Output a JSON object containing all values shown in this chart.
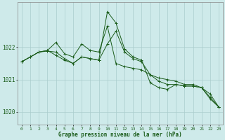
{
  "title": "Graphe pression niveau de la mer (hPa)",
  "bg_color": "#ceeaea",
  "grid_color": "#aacccc",
  "line_color": "#1a5c1a",
  "x_ticks": [
    0,
    1,
    2,
    3,
    4,
    5,
    6,
    7,
    8,
    9,
    10,
    11,
    12,
    13,
    14,
    15,
    16,
    17,
    18,
    19,
    20,
    21,
    22,
    23
  ],
  "ylim": [
    1019.6,
    1023.4
  ],
  "yticks": [
    1020,
    1021,
    1022
  ],
  "series": [
    [
      1021.55,
      1021.7,
      1021.85,
      1021.9,
      1021.75,
      1021.6,
      1021.5,
      1021.7,
      1021.65,
      1021.6,
      1022.1,
      1022.5,
      1021.85,
      1021.65,
      1021.55,
      1021.15,
      1021.05,
      1021.0,
      1020.95,
      1020.85,
      1020.85,
      1020.75,
      1020.4,
      1020.15
    ],
    [
      1021.55,
      1021.7,
      1021.85,
      1021.9,
      1022.15,
      1021.8,
      1021.7,
      1022.1,
      1021.9,
      1021.85,
      1022.65,
      1021.5,
      1021.4,
      1021.35,
      1021.3,
      1021.15,
      1020.95,
      1020.85,
      1020.85,
      1020.8,
      1020.8,
      1020.75,
      1020.45,
      1020.15
    ],
    [
      1021.55,
      1021.7,
      1021.85,
      1021.88,
      1021.85,
      1021.65,
      1021.5,
      1021.7,
      1021.65,
      1021.6,
      1023.1,
      1022.75,
      1021.95,
      1021.7,
      1021.6,
      1020.9,
      1020.75,
      1020.7,
      1020.85,
      1020.8,
      1020.8,
      1020.75,
      1020.55,
      1020.15
    ]
  ]
}
